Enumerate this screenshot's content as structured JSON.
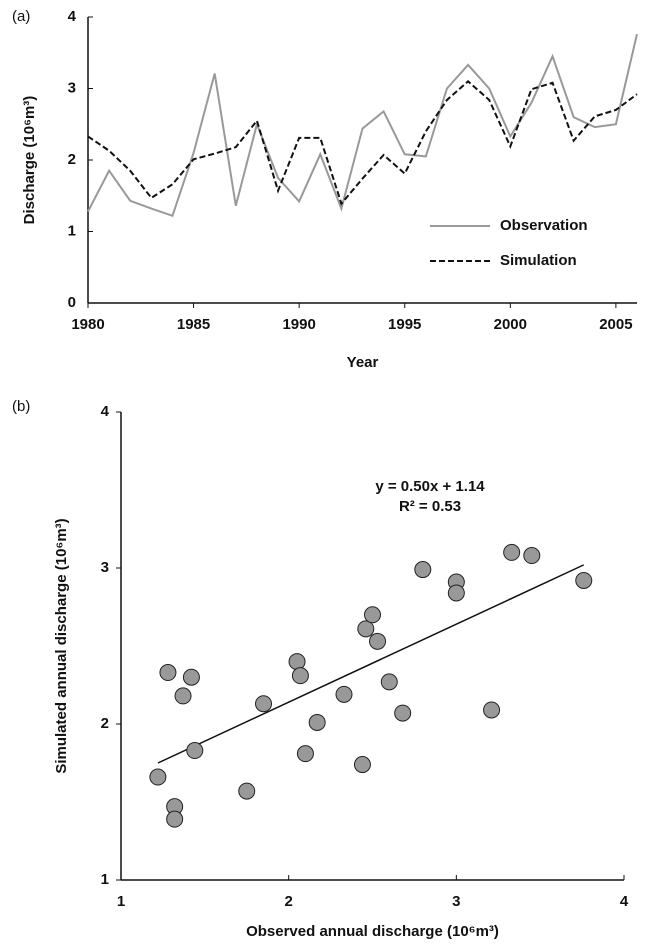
{
  "chart_data": [
    {
      "type": "line",
      "panel_label": "(a)",
      "xlabel": "Year",
      "ylabel": "Discharge (10⁶m³)",
      "x": [
        1980,
        1981,
        1982,
        1983,
        1984,
        1985,
        1986,
        1987,
        1988,
        1989,
        1990,
        1991,
        1992,
        1993,
        1994,
        1995,
        1996,
        1997,
        1998,
        1999,
        2000,
        2001,
        2002,
        2003,
        2004,
        2005,
        2006
      ],
      "series": [
        {
          "name": "Observation",
          "color": "#999999",
          "dash": false,
          "values": [
            1.28,
            1.85,
            1.43,
            1.32,
            1.22,
            2.1,
            3.21,
            1.36,
            2.5,
            1.75,
            1.42,
            2.08,
            1.32,
            2.44,
            2.68,
            2.08,
            2.05,
            3.0,
            3.33,
            3.0,
            2.33,
            2.8,
            3.45,
            2.6,
            2.46,
            2.5,
            3.76
          ]
        },
        {
          "name": "Simulation",
          "color": "#111111",
          "dash": true,
          "values": [
            2.33,
            2.13,
            1.85,
            1.47,
            1.66,
            2.01,
            2.09,
            2.18,
            2.55,
            1.57,
            2.31,
            2.31,
            1.39,
            1.74,
            2.07,
            1.81,
            2.4,
            2.84,
            3.1,
            2.84,
            2.19,
            2.99,
            3.08,
            2.27,
            2.61,
            2.7,
            2.92
          ]
        }
      ],
      "xlim": [
        1980,
        2006
      ],
      "xticks": [
        1980,
        1985,
        1990,
        1995,
        2000,
        2005
      ],
      "ylim": [
        0,
        4
      ],
      "yticks": [
        0,
        1,
        2,
        3,
        4
      ]
    },
    {
      "type": "scatter",
      "panel_label": "(b)",
      "xlabel": "Observed annual discharge (10⁶m³)",
      "ylabel": "Simulated annual discharge (10⁶m³)",
      "color": "#999999",
      "x": [
        1.22,
        1.28,
        1.32,
        1.32,
        1.37,
        1.42,
        1.44,
        1.75,
        1.85,
        2.05,
        2.07,
        2.1,
        2.17,
        2.33,
        2.44,
        2.46,
        2.5,
        2.53,
        2.6,
        2.68,
        2.8,
        3.0,
        3.0,
        3.21,
        3.33,
        3.45,
        3.76
      ],
      "values": [
        1.66,
        2.33,
        1.47,
        1.39,
        2.18,
        2.3,
        1.83,
        1.57,
        2.13,
        2.4,
        2.31,
        1.81,
        2.01,
        2.19,
        1.74,
        2.61,
        2.7,
        2.53,
        2.27,
        2.07,
        2.99,
        2.91,
        2.84,
        2.09,
        3.1,
        3.08,
        2.92
      ],
      "trendline": {
        "label": "y = 0.50x + 1.14",
        "slope": 0.5,
        "intercept": 1.14
      },
      "r2_label": "R² = 0.53",
      "xlim": [
        1,
        4
      ],
      "xticks": [
        1,
        2,
        3,
        4
      ],
      "ylim": [
        1,
        4
      ],
      "yticks": [
        1,
        2,
        3,
        4
      ]
    }
  ]
}
